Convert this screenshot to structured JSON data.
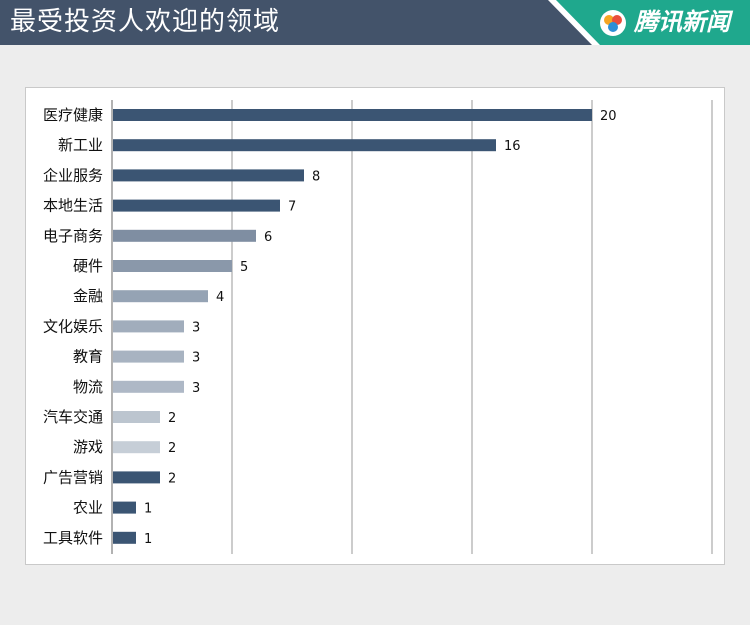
{
  "header": {
    "title": "最受投资人欢迎的领域",
    "brand": "腾讯新闻"
  },
  "colors": {
    "header_bg": "#43536a",
    "brand_bg": "#1fa88d",
    "dark_bar": "#3b5573",
    "grid": "#9a9a9a"
  },
  "chart_data": {
    "type": "bar",
    "orientation": "horizontal",
    "title": "最受投资人欢迎的领域",
    "categories": [
      "医疗健康",
      "新工业",
      "企业服务",
      "本地生活",
      "电子商务",
      "硬件",
      "金融",
      "文化娱乐",
      "教育",
      "物流",
      "汽车交通",
      "游戏",
      "广告营销",
      "农业",
      "工具软件"
    ],
    "values": [
      20,
      16,
      8,
      7,
      6,
      5,
      4,
      3,
      3,
      3,
      2,
      2,
      2,
      1,
      1
    ],
    "bar_colors": [
      "#3b5573",
      "#3b5573",
      "#3b5573",
      "#3b5573",
      "#7f8ea2",
      "#8a98aa",
      "#95a3b4",
      "#a1adbc",
      "#a8b3c1",
      "#aeb8c6",
      "#bcc5cf",
      "#c6ced7",
      "#3b5573",
      "#3b5573",
      "#3b5573"
    ],
    "xlim": [
      0,
      25
    ],
    "grid": true,
    "xlabel": "",
    "ylabel": ""
  }
}
